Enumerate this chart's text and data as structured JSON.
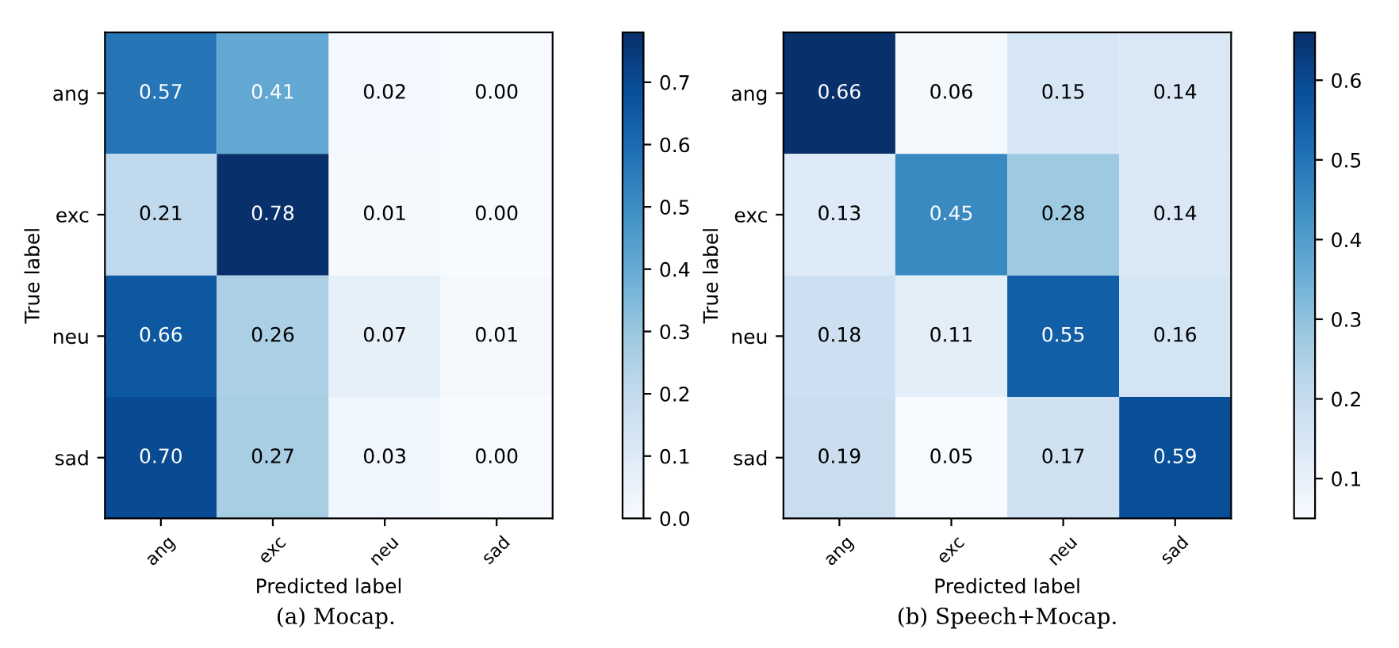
{
  "chart_data": [
    {
      "type": "heatmap",
      "xlabel": "Predicted label",
      "ylabel": "True label",
      "categories": [
        "ang",
        "exc",
        "neu",
        "sad"
      ],
      "y_categories": [
        "ang",
        "exc",
        "neu",
        "sad"
      ],
      "cells": [
        [
          0.57,
          0.41,
          0.02,
          0.0
        ],
        [
          0.21,
          0.78,
          0.01,
          0.0
        ],
        [
          0.66,
          0.26,
          0.07,
          0.01
        ],
        [
          0.7,
          0.27,
          0.03,
          0.0
        ]
      ],
      "cell_labels": [
        [
          "0.57",
          "0.41",
          "0.02",
          "0.00"
        ],
        [
          "0.21",
          "0.78",
          "0.01",
          "0.00"
        ],
        [
          "0.66",
          "0.26",
          "0.07",
          "0.01"
        ],
        [
          "0.70",
          "0.27",
          "0.03",
          "0.00"
        ]
      ],
      "clim": [
        0.0,
        0.78
      ],
      "cticks": [
        {
          "value": 0.0,
          "label": "0.0"
        },
        0.1,
        0.2,
        0.3,
        0.4,
        0.5,
        0.6,
        0.7
      ],
      "annotations": [
        "(a) Mocap."
      ]
    },
    {
      "type": "heatmap",
      "xlabel": "Predicted label",
      "ylabel": "True label",
      "categories": [
        "ang",
        "exc",
        "neu",
        "sad"
      ],
      "y_categories": [
        "ang",
        "exc",
        "neu",
        "sad"
      ],
      "cells": [
        [
          0.66,
          0.06,
          0.15,
          0.14
        ],
        [
          0.13,
          0.45,
          0.28,
          0.14
        ],
        [
          0.18,
          0.11,
          0.55,
          0.16
        ],
        [
          0.19,
          0.05,
          0.17,
          0.59
        ]
      ],
      "cell_labels": [
        [
          "0.66",
          "0.06",
          "0.15",
          "0.14"
        ],
        [
          "0.13",
          "0.45",
          "0.28",
          "0.14"
        ],
        [
          "0.18",
          "0.11",
          "0.55",
          "0.16"
        ],
        [
          "0.19",
          "0.05",
          "0.17",
          "0.59"
        ]
      ],
      "clim": [
        0.05,
        0.66
      ],
      "cticks": [
        0.1,
        0.2,
        0.3,
        0.4,
        0.5,
        0.6
      ],
      "annotations": [
        "(b) Speech+Mocap."
      ]
    }
  ]
}
